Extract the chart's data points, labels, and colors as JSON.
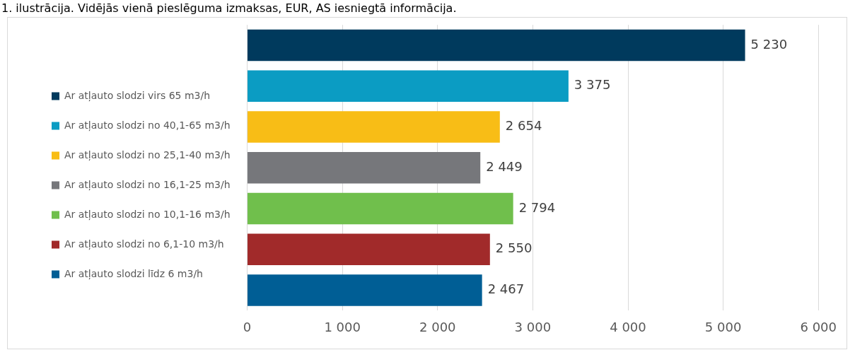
{
  "chart_data": {
    "type": "bar",
    "orientation": "horizontal",
    "title": "1. ilustrācija. Vidējās vienā pieslēguma izmaksas, EUR, AS iesniegtā informācija.",
    "categories": [
      null,
      null,
      null,
      null,
      null,
      null,
      null
    ],
    "series": [
      {
        "name": "Ar atļauto slodzi virs 65 m3/h",
        "color": "#003a5d",
        "values": [
          5230,
          null,
          null,
          null,
          null,
          null,
          null
        ]
      },
      {
        "name": "Ar atļauto slodzi no 40,1-65 m3/h",
        "color": "#0b9cc3",
        "values": [
          null,
          3375,
          null,
          null,
          null,
          null,
          null
        ]
      },
      {
        "name": "Ar atļauto slodzi no 25,1-40 m3/h",
        "color": "#f8bd16",
        "values": [
          null,
          null,
          2654,
          null,
          null,
          null,
          null
        ]
      },
      {
        "name": "Ar atļauto slodzi no 16,1-25 m3/h",
        "color": "#76777b",
        "values": [
          null,
          null,
          null,
          2449,
          null,
          null,
          null
        ]
      },
      {
        "name": "Ar atļauto slodzi no 10,1-16 m3/h",
        "color": "#70bf4c",
        "values": [
          null,
          null,
          null,
          null,
          2794,
          null,
          null
        ]
      },
      {
        "name": "Ar atļauto slodzi no 6,1-10 m3/h",
        "color": "#a12a2a",
        "values": [
          null,
          null,
          null,
          null,
          null,
          2550,
          null
        ]
      },
      {
        "name": "Ar atļauto slodzi līdz 6 m3/h",
        "color": "#005e95",
        "values": [
          null,
          null,
          null,
          null,
          null,
          null,
          2467
        ]
      }
    ],
    "xlim": [
      0,
      6000
    ],
    "xticks": [
      0,
      {
        "value": 1000,
        "label": "1 000"
      },
      {
        "value": 2000,
        "label": "2 000"
      },
      {
        "value": 3000,
        "label": "3 000"
      },
      {
        "value": 4000,
        "label": "4 000"
      },
      {
        "value": 5000,
        "label": "5 000"
      },
      {
        "value": 6000,
        "label": "6 000"
      }
    ],
    "grid": "x",
    "legend": "left",
    "data_labels": true
  }
}
